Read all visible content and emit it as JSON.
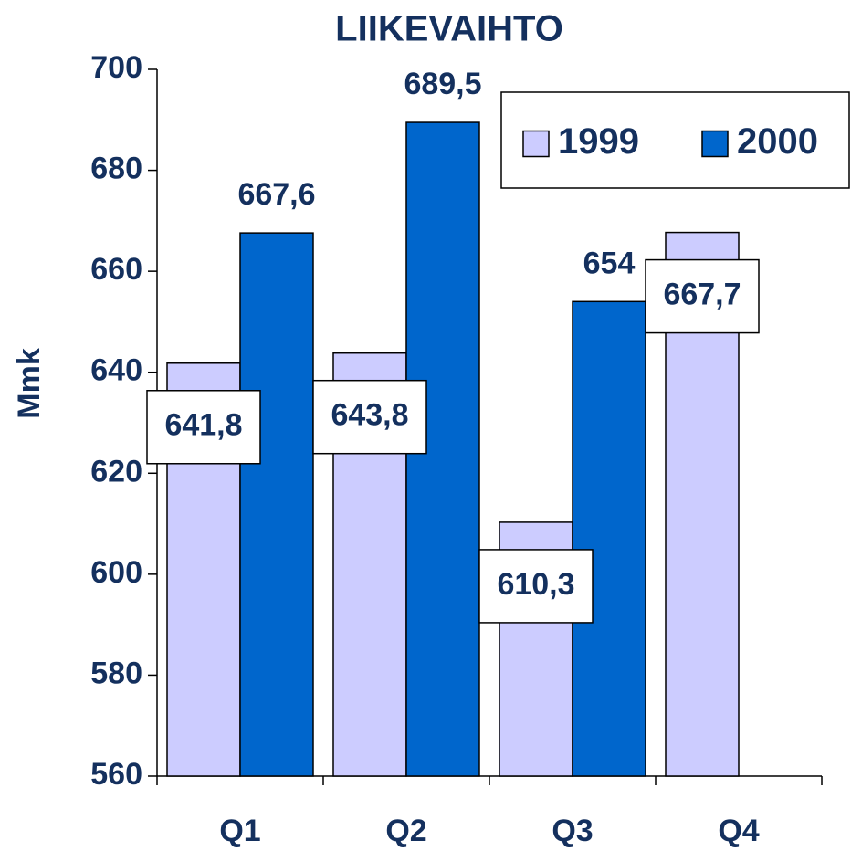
{
  "chart_data": {
    "type": "bar",
    "title": "LIIKEVAIHTO",
    "y_label": "Mmk",
    "categories": [
      "Q1",
      "Q2",
      "Q3",
      "Q4"
    ],
    "series": [
      {
        "name": "1999",
        "color": "#ccccff",
        "values": [
          641.8,
          643.8,
          610.3,
          667.7
        ],
        "value_labels": [
          "641,8",
          "643,8",
          "610,3",
          "667,7"
        ]
      },
      {
        "name": "2000",
        "color": "#0066cc",
        "values": [
          667.6,
          689.5,
          654,
          null
        ],
        "value_labels": [
          "667,6",
          "689,5",
          "654",
          null
        ]
      }
    ],
    "ylim": [
      560,
      700
    ],
    "yticks": [
      560,
      580,
      600,
      620,
      640,
      660,
      680,
      700
    ],
    "legend": "top-right"
  }
}
